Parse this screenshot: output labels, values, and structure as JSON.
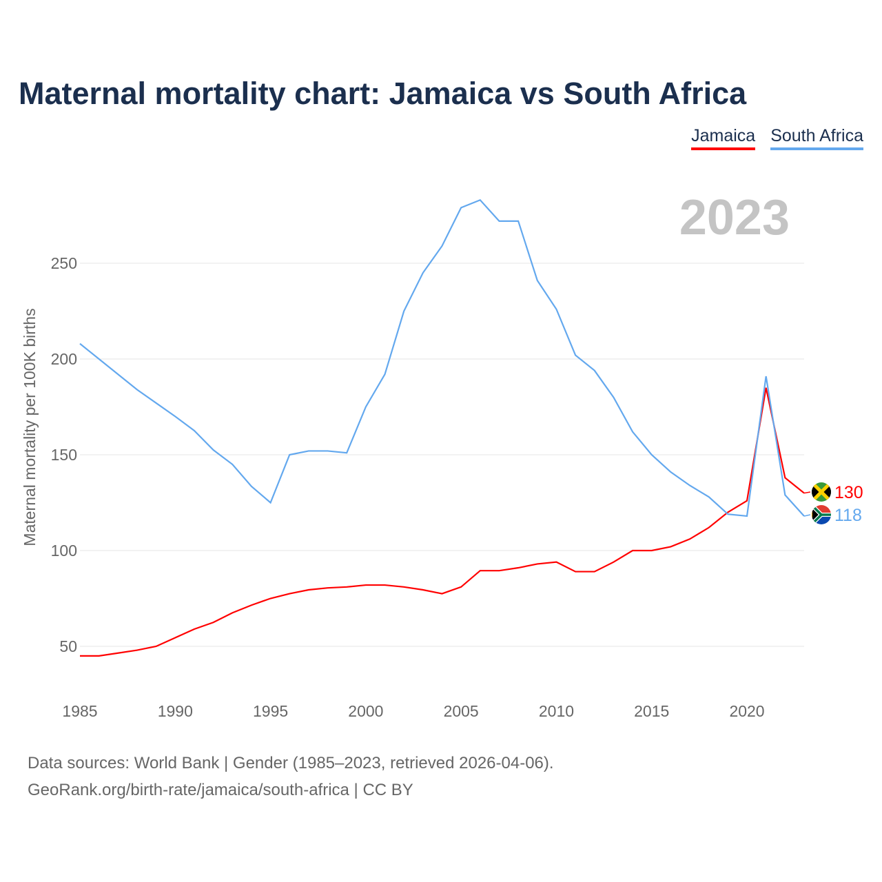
{
  "title": "Maternal mortality chart: Jamaica vs South Africa",
  "footer": {
    "line1": "Data sources: World Bank | Gender (1985–2023, retrieved 2026-04-06).",
    "line2": "GeoRank.org/birth-rate/jamaica/south-africa | CC BY"
  },
  "chart_data": {
    "type": "line",
    "title": "Maternal mortality chart: Jamaica vs South Africa",
    "ylabel": "Maternal mortality per 100K births",
    "xlabel": "",
    "year_label": "2023",
    "xlim": [
      1985,
      2023
    ],
    "ylim": [
      25,
      290
    ],
    "xticks": [
      "1985",
      "1990",
      "1995",
      "2000",
      "2005",
      "2010",
      "2015",
      "2020"
    ],
    "yticks": [
      "50",
      "100",
      "150",
      "200",
      "250"
    ],
    "grid": true,
    "legend_position": "top-right",
    "x": [
      1985,
      1986,
      1987,
      1988,
      1989,
      1990,
      1991,
      1992,
      1993,
      1994,
      1995,
      1996,
      1997,
      1998,
      1999,
      2000,
      2001,
      2002,
      2003,
      2004,
      2005,
      2006,
      2007,
      2008,
      2009,
      2010,
      2011,
      2012,
      2013,
      2014,
      2015,
      2016,
      2017,
      2018,
      2019,
      2020,
      2021,
      2022,
      2023
    ],
    "series": [
      {
        "name": "Jamaica",
        "color": "#ff0000",
        "end_label": "130",
        "values": [
          45,
          45,
          46.5,
          48,
          50,
          54.5,
          59,
          62.5,
          67.5,
          71.5,
          75,
          77.5,
          79.5,
          80.5,
          81,
          82,
          82,
          81,
          79.5,
          77.5,
          81,
          89.5,
          89.5,
          91,
          93,
          94,
          89,
          89,
          94,
          100,
          100,
          102,
          106,
          112,
          120,
          126,
          185,
          138,
          130
        ]
      },
      {
        "name": "South Africa",
        "color": "#63a8ee",
        "end_label": "118",
        "values": [
          208,
          200,
          192,
          184,
          177,
          170,
          162.6,
          152.5,
          145,
          133.5,
          125,
          150,
          152,
          152,
          151,
          175,
          192,
          225,
          245,
          259,
          279,
          283,
          272,
          272,
          241,
          226,
          202,
          194,
          180,
          162,
          150,
          141,
          134,
          128,
          119,
          118,
          191,
          129,
          118
        ]
      }
    ]
  }
}
